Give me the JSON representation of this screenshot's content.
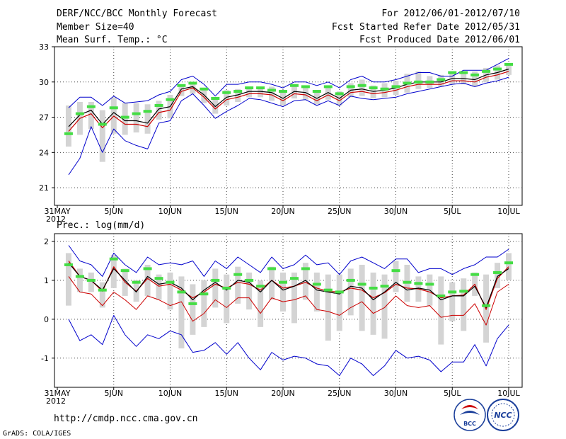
{
  "header": {
    "title": "DERF/NCC/BCC Monthly Forecast",
    "member_size": "Member Size=40",
    "var1_label": "Mean Surf. Temp.: °C",
    "period": "For 2012/06/01-2012/07/10",
    "started": "Fcst Started Refer Date 2012/05/31",
    "produced": "Fcst Produced Date 2012/06/01"
  },
  "footer": {
    "url": "http://cmdp.ncc.cma.gov.cn",
    "grads": "GrADS: COLA/IGES",
    "logo_bcc": "BCC",
    "logo_ncc": "NCC"
  },
  "colors": {
    "ens_mean": "#000000",
    "control": "#cc0000",
    "max_line": "#0000cc",
    "min_line": "#0000cc",
    "range_line": "#cc0000",
    "spread_box": "#d4d4d4",
    "climate": "#44dd44"
  },
  "chart_data": [
    {
      "type": "line",
      "title": "Mean Surf. Temp.: °C",
      "xlabel": "",
      "ylabel": "°C",
      "ylim": [
        19.5,
        33
      ],
      "yticks": [
        21,
        24,
        27,
        30,
        33
      ],
      "x_tick_labels": [
        "31MAY",
        "5JUN",
        "10JUN",
        "15JUN",
        "20JUN",
        "25JUN",
        "30JUN",
        "5JUL",
        "10JUL"
      ],
      "x_tick_days": [
        0,
        5,
        10,
        15,
        20,
        25,
        30,
        35,
        40
      ],
      "year_label": "2012",
      "days": [
        1,
        2,
        3,
        4,
        5,
        6,
        7,
        8,
        9,
        10,
        11,
        12,
        13,
        14,
        15,
        16,
        17,
        18,
        19,
        20,
        21,
        22,
        23,
        24,
        25,
        26,
        27,
        28,
        29,
        30,
        31,
        32,
        33,
        34,
        35,
        36,
        37,
        38,
        39,
        40
      ],
      "series": [
        {
          "name": "Ensemble max",
          "values": [
            27.8,
            28.7,
            28.7,
            28.0,
            28.8,
            28.2,
            28.3,
            28.4,
            28.9,
            29.2,
            30.2,
            30.5,
            29.8,
            28.8,
            29.8,
            29.8,
            30.0,
            30.0,
            29.8,
            29.5,
            30.0,
            30.0,
            29.7,
            30.0,
            29.5,
            30.2,
            30.5,
            30.0,
            30.0,
            30.2,
            30.5,
            30.8,
            30.8,
            30.5,
            30.5,
            31.0,
            31.0,
            31.0,
            31.5,
            32.0
          ]
        },
        {
          "name": "Ensemble mean",
          "values": [
            26.2,
            27.2,
            27.6,
            26.4,
            27.4,
            26.7,
            26.7,
            26.5,
            27.7,
            27.9,
            29.4,
            29.6,
            28.9,
            27.9,
            28.7,
            28.9,
            29.2,
            29.2,
            29.1,
            28.6,
            29.2,
            29.1,
            28.6,
            29.1,
            28.6,
            29.3,
            29.4,
            29.2,
            29.3,
            29.5,
            29.8,
            30.0,
            30.0,
            30.0,
            30.3,
            30.3,
            30.2,
            30.6,
            30.8,
            31.1
          ]
        },
        {
          "name": "Control forecast",
          "values": [
            25.8,
            26.9,
            27.3,
            26.1,
            27.1,
            26.4,
            26.4,
            26.2,
            27.4,
            27.6,
            29.2,
            29.5,
            28.7,
            27.7,
            28.5,
            28.7,
            29.0,
            29.0,
            28.9,
            28.4,
            29.0,
            28.9,
            28.4,
            28.9,
            28.4,
            29.1,
            29.2,
            29.0,
            29.1,
            29.3,
            29.6,
            29.8,
            29.8,
            29.8,
            30.1,
            30.1,
            30.0,
            30.4,
            30.6,
            30.9
          ]
        },
        {
          "name": "Ensemble min",
          "values": [
            22.1,
            23.5,
            26.2,
            24.0,
            26.0,
            25.0,
            24.6,
            24.3,
            26.5,
            26.7,
            28.4,
            29.0,
            28.0,
            26.9,
            27.5,
            28.0,
            28.6,
            28.5,
            28.2,
            27.9,
            28.4,
            28.5,
            28.0,
            28.4,
            28.0,
            28.8,
            28.6,
            28.5,
            28.6,
            28.7,
            29.0,
            29.2,
            29.4,
            29.6,
            29.8,
            29.9,
            29.6,
            29.9,
            30.1,
            30.4
          ]
        },
        {
          "name": "Climate",
          "values": [
            25.6,
            27.3,
            27.9,
            26.4,
            27.8,
            27.0,
            27.3,
            27.5,
            28.0,
            28.5,
            29.7,
            29.9,
            29.4,
            28.6,
            29.1,
            29.2,
            29.5,
            29.5,
            29.3,
            29.2,
            29.7,
            29.6,
            29.2,
            29.6,
            29.0,
            29.6,
            29.7,
            29.5,
            29.4,
            29.6,
            29.9,
            30.0,
            30.0,
            30.2,
            30.8,
            30.8,
            30.6,
            30.9,
            31.1,
            31.5
          ]
        },
        {
          "name": "Spread box top",
          "values": [
            28.0,
            28.3,
            28.3,
            27.6,
            28.7,
            28.2,
            28.2,
            28.1,
            28.4,
            28.9,
            29.8,
            29.9,
            29.3,
            28.5,
            29.3,
            29.4,
            29.6,
            29.6,
            29.6,
            29.1,
            29.7,
            29.7,
            29.2,
            29.6,
            29.2,
            29.9,
            30.2,
            29.7,
            29.9,
            30.1,
            30.7,
            30.9,
            30.5,
            30.6,
            30.9,
            30.9,
            30.9,
            31.2,
            31.4,
            31.6
          ]
        },
        {
          "name": "Spread box bottom",
          "values": [
            24.5,
            25.5,
            26.0,
            23.2,
            25.6,
            25.5,
            25.7,
            25.6,
            26.8,
            26.9,
            28.8,
            29.0,
            28.2,
            27.3,
            28.0,
            28.3,
            28.7,
            28.7,
            28.4,
            28.0,
            28.6,
            28.5,
            28.1,
            28.5,
            28.0,
            28.7,
            28.8,
            28.6,
            28.7,
            28.9,
            29.1,
            29.4,
            29.5,
            29.6,
            29.8,
            29.8,
            29.6,
            30.0,
            30.2,
            30.6
          ]
        }
      ]
    },
    {
      "type": "line",
      "title": "Prec.: log(mm/d)",
      "xlabel": "",
      "ylabel": "log(mm/d)",
      "ylim": [
        -1.75,
        2.2
      ],
      "yticks": [
        -1,
        0,
        1,
        2
      ],
      "x_tick_labels": [
        "31MAY",
        "5JUN",
        "10JUN",
        "15JUN",
        "20JUN",
        "25JUN",
        "30JUN",
        "5JUL",
        "10JUL"
      ],
      "x_tick_days": [
        0,
        5,
        10,
        15,
        20,
        25,
        30,
        35,
        40
      ],
      "year_label": "2012",
      "days": [
        1,
        2,
        3,
        4,
        5,
        6,
        7,
        8,
        9,
        10,
        11,
        12,
        13,
        14,
        15,
        16,
        17,
        18,
        19,
        20,
        21,
        22,
        23,
        24,
        25,
        26,
        27,
        28,
        29,
        30,
        31,
        32,
        33,
        34,
        35,
        36,
        37,
        38,
        39,
        40
      ],
      "series": [
        {
          "name": "Ensemble max",
          "values": [
            1.9,
            1.5,
            1.4,
            1.1,
            1.7,
            1.4,
            1.2,
            1.6,
            1.4,
            1.45,
            1.4,
            1.5,
            1.1,
            1.5,
            1.3,
            1.6,
            1.4,
            1.2,
            1.6,
            1.3,
            1.4,
            1.65,
            1.4,
            1.45,
            1.15,
            1.5,
            1.6,
            1.45,
            1.3,
            1.55,
            1.55,
            1.2,
            1.3,
            1.3,
            1.15,
            1.3,
            1.4,
            1.6,
            1.6,
            1.8
          ]
        },
        {
          "name": "Ensemble mean",
          "values": [
            1.45,
            1.1,
            1.0,
            0.75,
            1.3,
            1.0,
            0.7,
            1.1,
            0.9,
            0.95,
            0.8,
            0.5,
            0.75,
            0.95,
            0.75,
            1.0,
            0.95,
            0.7,
            1.0,
            0.75,
            0.85,
            1.0,
            0.75,
            0.7,
            0.65,
            0.85,
            0.8,
            0.5,
            0.7,
            0.95,
            0.75,
            0.8,
            0.75,
            0.5,
            0.6,
            0.6,
            0.85,
            0.3,
            1.1,
            1.3
          ]
        },
        {
          "name": "Control forecast",
          "values": [
            1.5,
            1.1,
            1.0,
            0.72,
            1.35,
            0.95,
            0.72,
            1.05,
            0.85,
            0.9,
            0.75,
            0.55,
            0.7,
            0.9,
            0.8,
            0.95,
            0.9,
            0.75,
            1.0,
            0.8,
            0.85,
            0.95,
            0.8,
            0.72,
            0.7,
            0.8,
            0.75,
            0.55,
            0.68,
            0.9,
            0.8,
            0.78,
            0.7,
            0.55,
            0.6,
            0.62,
            0.9,
            0.25,
            1.05,
            1.35
          ]
        },
        {
          "name": "Range line",
          "values": [
            1.1,
            0.7,
            0.65,
            0.35,
            0.7,
            0.5,
            0.25,
            0.6,
            0.5,
            0.35,
            0.45,
            -0.05,
            0.15,
            0.5,
            0.3,
            0.55,
            0.55,
            0.15,
            0.55,
            0.45,
            0.5,
            0.6,
            0.25,
            0.2,
            0.1,
            0.3,
            0.45,
            0.15,
            0.3,
            0.6,
            0.35,
            0.3,
            0.35,
            0.05,
            0.1,
            0.1,
            0.4,
            -0.15,
            0.7,
            0.9
          ]
        },
        {
          "name": "Ensemble min",
          "values": [
            0.0,
            -0.55,
            -0.4,
            -0.65,
            0.1,
            -0.4,
            -0.7,
            -0.4,
            -0.5,
            -0.3,
            -0.4,
            -0.85,
            -0.8,
            -0.6,
            -0.9,
            -0.6,
            -1.0,
            -1.3,
            -0.85,
            -1.05,
            -0.95,
            -1.0,
            -1.15,
            -1.2,
            -1.45,
            -1.0,
            -1.15,
            -1.45,
            -1.2,
            -0.8,
            -1.0,
            -0.95,
            -1.05,
            -1.35,
            -1.1,
            -1.1,
            -0.65,
            -1.2,
            -0.5,
            -0.15
          ]
        },
        {
          "name": "Climate",
          "values": [
            1.4,
            1.1,
            1.0,
            0.75,
            1.55,
            1.25,
            0.95,
            1.3,
            1.05,
            0.95,
            0.7,
            0.4,
            0.65,
            1.0,
            0.8,
            1.15,
            1.0,
            0.85,
            1.3,
            0.95,
            1.05,
            1.3,
            0.9,
            0.75,
            0.7,
            1.0,
            0.9,
            0.8,
            0.85,
            1.25,
            0.95,
            0.92,
            0.9,
            0.6,
            0.7,
            0.72,
            1.15,
            0.35,
            1.2,
            1.45
          ]
        },
        {
          "name": "Spread box top",
          "values": [
            1.7,
            1.3,
            1.2,
            0.95,
            1.65,
            1.3,
            1.0,
            1.4,
            1.15,
            1.2,
            1.1,
            0.9,
            1.0,
            1.3,
            1.15,
            1.35,
            1.2,
            1.0,
            1.35,
            1.2,
            1.2,
            1.45,
            1.2,
            1.15,
            1.15,
            1.3,
            1.4,
            1.2,
            1.15,
            1.5,
            1.4,
            1.1,
            1.15,
            1.1,
            0.95,
            1.05,
            1.2,
            1.15,
            1.45,
            1.7
          ]
        },
        {
          "name": "Spread box bottom",
          "values": [
            0.35,
            0.7,
            0.7,
            0.3,
            0.8,
            0.6,
            0.45,
            0.6,
            0.5,
            0.25,
            -0.75,
            -0.4,
            -0.2,
            0.3,
            -0.1,
            0.4,
            0.25,
            -0.2,
            0.5,
            0.2,
            -0.1,
            0.5,
            0.2,
            -0.55,
            -0.3,
            0.1,
            -0.3,
            -0.4,
            -0.5,
            0.7,
            0.45,
            0.45,
            0.35,
            -0.65,
            -0.05,
            -0.3,
            0.6,
            -0.6,
            0.8,
            1.0
          ]
        }
      ]
    }
  ]
}
